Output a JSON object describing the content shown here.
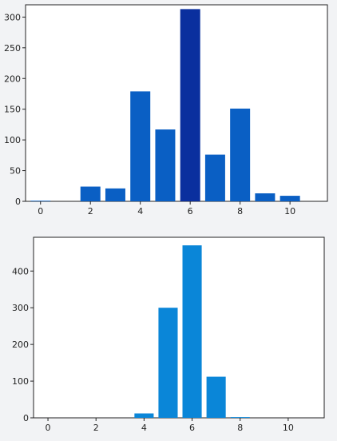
{
  "chart_data": [
    {
      "type": "bar",
      "title": "",
      "xlabel": "",
      "ylabel": "",
      "x": [
        0,
        2,
        3,
        4,
        5,
        6,
        7,
        8,
        9,
        10
      ],
      "values": [
        1,
        24,
        21,
        179,
        117,
        313,
        76,
        151,
        13,
        9
      ],
      "color": "#0a5fc4",
      "peak_color": "#0a2f9e",
      "xlim": [
        -0.6,
        11.5
      ],
      "ylim": [
        0,
        320
      ],
      "xticks": [
        0,
        2,
        4,
        6,
        8,
        10
      ],
      "yticks": [
        0,
        50,
        100,
        150,
        200,
        250,
        300
      ],
      "grid": false
    },
    {
      "type": "bar",
      "title": "",
      "xlabel": "",
      "ylabel": "",
      "x": [
        4,
        5,
        6,
        7,
        8
      ],
      "values": [
        12,
        300,
        470,
        112,
        2
      ],
      "color": "#0a86d8",
      "xlim": [
        -0.6,
        11.5
      ],
      "ylim": [
        0,
        492
      ],
      "xticks": [
        0,
        2,
        4,
        6,
        8,
        10
      ],
      "yticks": [
        0,
        100,
        200,
        300,
        400
      ],
      "grid": false
    }
  ]
}
